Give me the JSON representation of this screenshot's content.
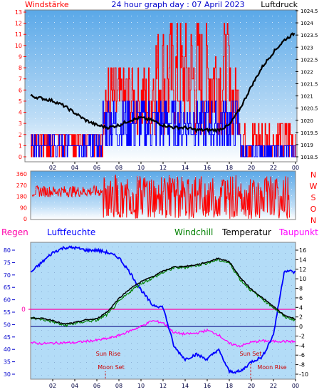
{
  "header": {
    "left_label": "Windstärke",
    "title": "24 hour graph day : 07 April 2023",
    "right_label": "Luftdruck"
  },
  "wind_panel": {
    "y_left_ticks": [
      "0",
      "1",
      "2",
      "3",
      "4",
      "5",
      "6",
      "7",
      "8",
      "9",
      "10",
      "11",
      "12",
      "13"
    ],
    "y_right_ticks": [
      "1018.5",
      "1019",
      "1019.5",
      "1020",
      "1020.5",
      "1021",
      "1021.5",
      "1022",
      "1022.5",
      "1023",
      "1023.5",
      "1024",
      "1024.5"
    ]
  },
  "dir_panel": {
    "y_ticks": [
      "0",
      "90",
      "180",
      "270",
      "360"
    ],
    "compass": [
      "N",
      "W",
      "S",
      "O",
      "N"
    ]
  },
  "x_ticks": [
    "02",
    "04",
    "06",
    "08",
    "10",
    "12",
    "14",
    "16",
    "18",
    "20",
    "22",
    "00"
  ],
  "legend": {
    "regen": "Regen",
    "luftfeuchte": "Luftfeuchte",
    "windchill": "Windchill",
    "temperatur": "Temperatur",
    "taupunkt": "Taupunkt"
  },
  "temp_panel": {
    "y_left_ticks": [
      "30",
      "35",
      "40",
      "45",
      "50",
      "55",
      "60",
      "65",
      "70",
      "75",
      "80"
    ],
    "y_right_ticks": [
      "-10",
      "-8",
      "-6",
      "-4",
      "-2",
      "0",
      "2",
      "4",
      "6",
      "8",
      "10",
      "12",
      "14",
      "16"
    ],
    "rain_zero_label": "0",
    "annotations": {
      "sun_rise": "Sun Rise",
      "sun_set": "Sun Set",
      "moon_set": "Moon Set",
      "moon_rise": "Moon Rise"
    }
  },
  "colors": {
    "wind_gust": "#ff0000",
    "wind_avg": "#0000ff",
    "pressure": "#000000",
    "humidity": "#0000ff",
    "temperature": "#000000",
    "windchill": "#008000",
    "dewpoint": "#ff00ff",
    "rain_line": "#ff00aa",
    "moon_marker": "#cc0000"
  },
  "chart_data": [
    {
      "type": "line",
      "title": "24 hour graph day : 07 April 2023",
      "x": [
        "00",
        "01",
        "02",
        "03",
        "04",
        "05",
        "06",
        "07",
        "08",
        "09",
        "10",
        "11",
        "12",
        "13",
        "14",
        "15",
        "16",
        "17",
        "18",
        "19",
        "20",
        "21",
        "22",
        "23",
        "24"
      ],
      "xlim": [
        0,
        24
      ],
      "series": [
        {
          "name": "Luftdruck",
          "axis": "right",
          "values": [
            1021.0,
            1020.9,
            1020.8,
            1020.6,
            1020.3,
            1020.0,
            1019.8,
            1019.7,
            1019.8,
            1020.0,
            1020.1,
            1020.0,
            1019.8,
            1019.7,
            1019.7,
            1019.6,
            1019.6,
            1019.6,
            1019.8,
            1020.5,
            1021.4,
            1022.2,
            1022.8,
            1023.3,
            1023.6
          ]
        }
      ],
      "gust_range": [
        0,
        13
      ],
      "avg_wind_range": [
        0,
        5
      ],
      "ylabel_left": "Windstärke",
      "ylabel_right": "Luftdruck",
      "ylim_left": [
        0,
        13
      ],
      "ylim_right": [
        1018.5,
        1024.5
      ]
    },
    {
      "type": "line",
      "series": [
        {
          "name": "wind direction",
          "values": [
            225,
            240,
            230,
            220,
            210,
            230,
            140,
            200,
            260,
            220,
            240,
            230,
            250,
            220,
            200,
            250,
            230,
            260,
            240,
            220,
            230,
            210,
            225,
            230,
            225
          ]
        }
      ],
      "ylim": [
        0,
        360
      ]
    },
    {
      "type": "line",
      "x": [
        "00",
        "01",
        "02",
        "03",
        "04",
        "05",
        "06",
        "07",
        "08",
        "09",
        "10",
        "11",
        "12",
        "13",
        "14",
        "15",
        "16",
        "17",
        "18",
        "19",
        "20",
        "21",
        "22",
        "23",
        "24"
      ],
      "xlim": [
        0,
        24
      ],
      "series": [
        {
          "name": "Luftfeuchte",
          "axis": "left",
          "values": [
            71,
            75,
            79,
            81,
            81,
            80,
            80,
            79,
            77,
            71,
            64,
            58,
            57,
            41,
            36,
            38,
            36,
            40,
            31,
            31,
            35,
            37,
            46,
            72,
            71
          ]
        },
        {
          "name": "Temperatur",
          "axis": "right",
          "values": [
            1.8,
            1.7,
            1.3,
            0.5,
            0.8,
            1.4,
            1.6,
            3.2,
            5.9,
            7.9,
            9.4,
            10.4,
            11.6,
            12.5,
            12.6,
            12.9,
            13.5,
            14.3,
            13.6,
            10.2,
            7.8,
            6.0,
            4.2,
            2.3,
            1.6
          ]
        },
        {
          "name": "Windchill",
          "axis": "right",
          "values": [
            1.8,
            1.5,
            1.0,
            0.2,
            0.6,
            1.1,
            1.3,
            2.6,
            5.2,
            7.3,
            9.0,
            10.1,
            11.3,
            12.3,
            12.4,
            12.8,
            13.3,
            14.0,
            13.3,
            9.8,
            7.5,
            5.8,
            4.0,
            2.0,
            1.4
          ]
        },
        {
          "name": "Taupunkt",
          "axis": "right",
          "values": [
            -3.4,
            -3.6,
            -3.5,
            -3.4,
            -3.4,
            -3.1,
            -2.9,
            -2.5,
            -1.9,
            -0.9,
            0.0,
            1.2,
            0.8,
            -1.3,
            -1.6,
            -1.4,
            -0.8,
            -1.7,
            -3.6,
            -4.1,
            -3.3,
            -3.0,
            -3.1,
            -3.1,
            -3.2
          ]
        },
        {
          "name": "Regen",
          "values": [
            0,
            0,
            0,
            0,
            0,
            0,
            0,
            0,
            0,
            0,
            0,
            0,
            0,
            0,
            0,
            0,
            0,
            0,
            0,
            0,
            0,
            0,
            0,
            0,
            0
          ]
        }
      ],
      "ylim_left": [
        30,
        80
      ],
      "ylim_right": [
        -10,
        16
      ]
    }
  ]
}
